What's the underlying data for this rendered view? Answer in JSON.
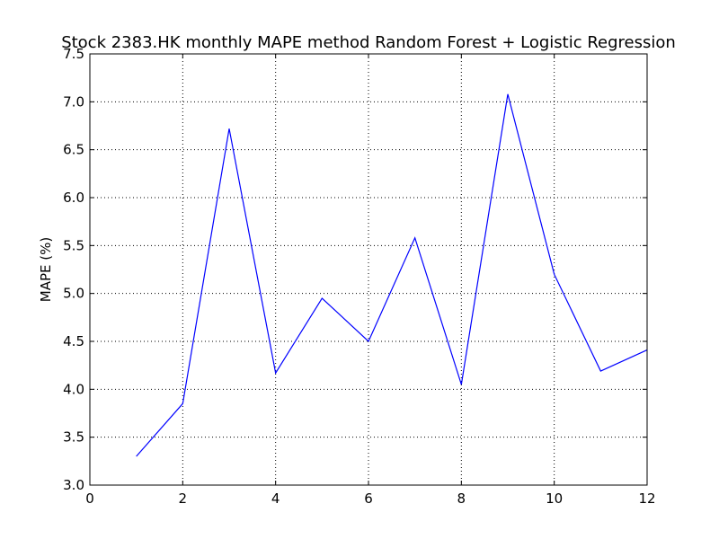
{
  "chart_data": {
    "type": "line",
    "title": "Stock 2383.HK monthly MAPE method Random Forest + Logistic Regression",
    "xlabel": "",
    "ylabel": "MAPE (%)",
    "xlim": [
      0,
      12
    ],
    "ylim": [
      3.0,
      7.5
    ],
    "x_ticks": [
      "0",
      "2",
      "4",
      "6",
      "8",
      "10",
      "12"
    ],
    "y_ticks": [
      "3.0",
      "3.5",
      "4.0",
      "4.5",
      "5.0",
      "5.5",
      "6.0",
      "6.5",
      "7.0",
      "7.5"
    ],
    "grid": true,
    "series": [
      {
        "color": "#0000ff",
        "x": [
          1,
          2,
          3,
          4,
          5,
          6,
          7,
          8,
          9,
          10,
          11,
          12
        ],
        "y": [
          3.3,
          3.85,
          6.72,
          4.17,
          4.95,
          4.5,
          5.58,
          4.05,
          7.08,
          5.2,
          4.19,
          4.41
        ]
      }
    ]
  }
}
